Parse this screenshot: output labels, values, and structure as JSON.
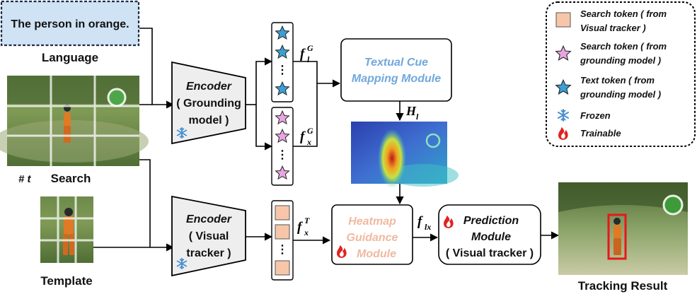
{
  "language": {
    "query_text": "The person in orange.",
    "label": "Language"
  },
  "inputs": {
    "search_label": "Search",
    "frame_index": "# t",
    "template_label": "Template"
  },
  "encoder_grounding": {
    "title": "Encoder",
    "line2": "( Grounding",
    "line3": "model )"
  },
  "encoder_visual": {
    "title": "Encoder",
    "line2": "( Visual",
    "line3": "tracker )"
  },
  "features": {
    "fl_main": "f",
    "fl_sup": "G",
    "fl_sub": "l",
    "fx_main": "f",
    "fx_sup": "G",
    "fx_sub": "x",
    "fxt_main": "f",
    "fxt_sup": "T",
    "fxt_sub": "x",
    "flx_main": "f",
    "flx_sub": "lx",
    "h_main": "H",
    "h_sub": "l"
  },
  "token_dots": "⋮",
  "modules": {
    "textual_cue_line1": "Textual Cue",
    "textual_cue_line2": "Mapping Module",
    "heatmap_line1": "Heatmap",
    "heatmap_line2": "Guidance",
    "heatmap_line3": "Module",
    "prediction_line1": "Prediction",
    "prediction_line2": "Module",
    "prediction_line3": "( Visual tracker )"
  },
  "output_label": "Tracking Result",
  "legend": {
    "items": [
      {
        "line1": "Search  token ( from",
        "line2": "Visual tracker )"
      },
      {
        "line1": "Search token ( from",
        "line2": "grounding model )"
      },
      {
        "line1": "Text token ( from",
        "line2": "grounding model )"
      },
      {
        "line1": "Frozen",
        "line2": ""
      },
      {
        "line1": "Trainable",
        "line2": ""
      }
    ]
  },
  "colors": {
    "language_box": "#cfe3f5",
    "encoder_fill": "#eeeeee",
    "search_token": "#f7c6a9",
    "search_token_grounding": "#e8a6df",
    "text_token": "#3b9fd6",
    "textual_cue_text": "#6fa8dc",
    "heatmap_text": "#f0b9a0",
    "frozen": "#5a9fd4",
    "trainable": "#e0231e"
  }
}
